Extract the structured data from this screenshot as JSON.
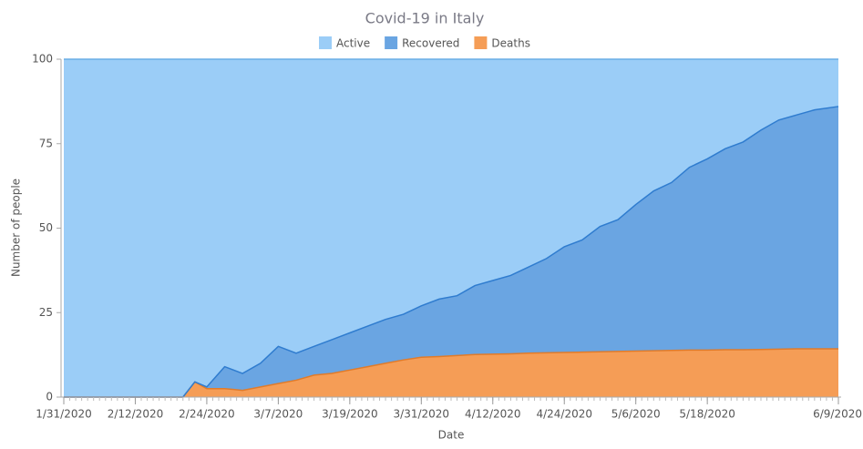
{
  "chart_data": {
    "type": "stacked_area_100",
    "title": "Covid-19 in Italy",
    "x_label": "Date",
    "y_label": "Number of people",
    "x": [
      "1/31/2020",
      "2/20/2020",
      "2/22/2020",
      "2/24/2020",
      "2/27/2020",
      "3/1/2020",
      "3/4/2020",
      "3/7/2020",
      "3/10/2020",
      "3/13/2020",
      "3/16/2020",
      "3/19/2020",
      "3/22/2020",
      "3/25/2020",
      "3/28/2020",
      "3/31/2020",
      "4/3/2020",
      "4/6/2020",
      "4/9/2020",
      "4/12/2020",
      "4/15/2020",
      "4/18/2020",
      "4/21/2020",
      "4/24/2020",
      "4/27/2020",
      "4/30/2020",
      "5/3/2020",
      "5/6/2020",
      "5/9/2020",
      "5/12/2020",
      "5/15/2020",
      "5/18/2020",
      "5/21/2020",
      "5/24/2020",
      "5/27/2020",
      "5/30/2020",
      "6/2/2020",
      "6/5/2020",
      "6/9/2020"
    ],
    "series": [
      {
        "name": "Active",
        "color": "#9bcdf7",
        "line_color": "#6aaee6",
        "values": [
          100,
          100,
          95.5,
          97,
          91,
          93,
          90,
          85,
          87,
          85,
          83,
          81,
          79,
          77,
          75.5,
          73,
          71,
          70,
          67,
          65.5,
          64,
          61.5,
          59,
          55.5,
          53.5,
          49.5,
          47.5,
          43,
          39,
          36.5,
          32,
          29.5,
          26.5,
          24.5,
          21,
          18,
          16.5,
          15,
          14
        ]
      },
      {
        "name": "Recovered",
        "color": "#6aa5e2",
        "line_color": "#2f7ccf",
        "values": [
          0,
          0,
          0,
          0.5,
          6.5,
          5,
          7,
          11,
          8,
          8.5,
          10,
          11,
          12,
          13,
          13.5,
          15.2,
          17,
          17.7,
          20.4,
          21.8,
          23.2,
          25.5,
          27.9,
          31.3,
          33.2,
          37.1,
          39,
          43.4,
          47.3,
          49.7,
          54.1,
          56.6,
          59.5,
          61.5,
          64.9,
          67.8,
          69.2,
          70.7,
          71.7
        ]
      },
      {
        "name": "Deaths",
        "color": "#f59d56",
        "line_color": "#e07b2a",
        "values": [
          0,
          0,
          4.5,
          2.5,
          2.5,
          2,
          3,
          4,
          5,
          6.5,
          7,
          8,
          9,
          10,
          11,
          11.8,
          12,
          12.3,
          12.6,
          12.7,
          12.8,
          13,
          13.1,
          13.2,
          13.3,
          13.4,
          13.5,
          13.6,
          13.7,
          13.8,
          13.9,
          13.9,
          14,
          14,
          14.1,
          14.2,
          14.3,
          14.3,
          14.3
        ]
      }
    ],
    "xlim": [
      "1/31/2020",
      "6/9/2020"
    ],
    "xticks": [
      "1/31/2020",
      "2/12/2020",
      "2/24/2020",
      "3/7/2020",
      "3/19/2020",
      "3/31/2020",
      "4/12/2020",
      "4/24/2020",
      "5/6/2020",
      "5/18/2020",
      "6/9/2020"
    ],
    "ylim": [
      0,
      100
    ],
    "yticks": [
      0,
      25,
      50,
      75,
      100
    ],
    "legend": "top"
  }
}
